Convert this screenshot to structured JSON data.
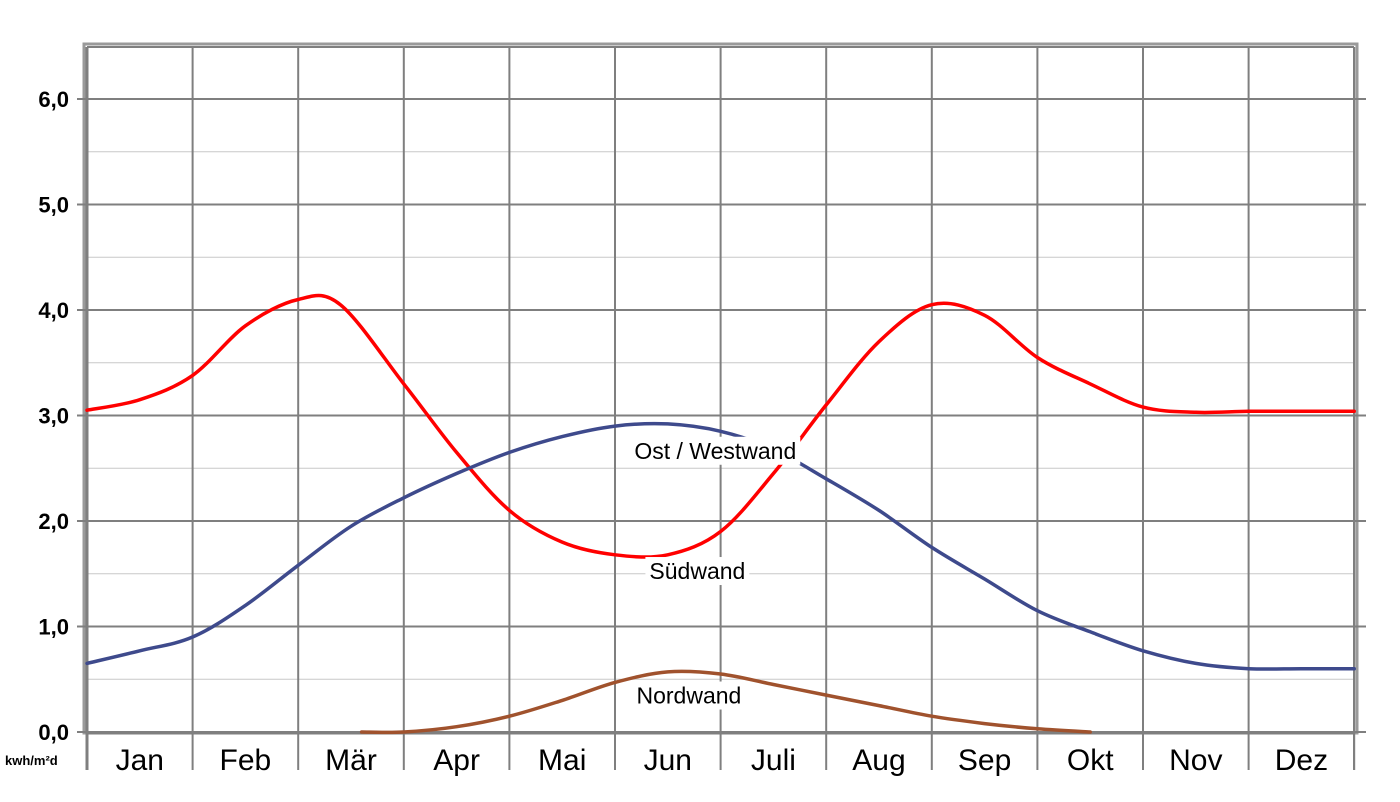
{
  "chart_data": {
    "type": "line",
    "title": "",
    "xlabel": "",
    "ylabel": "",
    "y_unit_label": "kwh/m²d",
    "categories": [
      "Jan",
      "Feb",
      "Mär",
      "Apr",
      "Mai",
      "Jun",
      "Juli",
      "Aug",
      "Sep",
      "Okt",
      "Nov",
      "Dez"
    ],
    "x_range": [
      1,
      13
    ],
    "ylim": [
      0,
      6.5
    ],
    "yticks": [
      0,
      1,
      2,
      3,
      4,
      5,
      6
    ],
    "ytick_labels": [
      "0,0",
      "1,0",
      "2,0",
      "3,0",
      "4,0",
      "5,0",
      "6,0"
    ],
    "grid": true,
    "series": [
      {
        "name": "Südwand",
        "color": "#ff0000",
        "x": [
          1.0,
          1.5,
          2.0,
          2.5,
          3.0,
          3.4,
          4.0,
          4.5,
          5.0,
          5.5,
          6.0,
          6.5,
          7.0,
          7.5,
          8.0,
          8.5,
          9.0,
          9.5,
          10.0,
          10.5,
          11.0,
          11.5,
          12.0,
          12.5,
          13.0
        ],
        "values": [
          3.05,
          3.15,
          3.38,
          3.85,
          4.1,
          4.05,
          3.3,
          2.65,
          2.1,
          1.8,
          1.68,
          1.68,
          1.9,
          2.45,
          3.1,
          3.7,
          4.05,
          3.95,
          3.55,
          3.3,
          3.08,
          3.03,
          3.04,
          3.04,
          3.04
        ]
      },
      {
        "name": "Ost / Westwand",
        "color": "#3e4a8c",
        "x": [
          1.0,
          1.5,
          2.0,
          2.5,
          3.0,
          3.5,
          4.0,
          4.5,
          5.0,
          5.5,
          6.0,
          6.5,
          7.0,
          7.5,
          8.0,
          8.5,
          9.0,
          9.5,
          10.0,
          10.5,
          11.0,
          11.5,
          12.0,
          12.5,
          13.0
        ],
        "values": [
          0.65,
          0.77,
          0.9,
          1.2,
          1.58,
          1.95,
          2.22,
          2.45,
          2.65,
          2.8,
          2.9,
          2.92,
          2.85,
          2.68,
          2.4,
          2.1,
          1.75,
          1.45,
          1.15,
          0.95,
          0.77,
          0.65,
          0.6,
          0.6,
          0.6
        ]
      },
      {
        "name": "Nordwand",
        "color": "#a0522d",
        "x": [
          3.6,
          4.0,
          4.5,
          5.0,
          5.5,
          6.0,
          6.5,
          7.0,
          7.5,
          8.0,
          8.5,
          9.0,
          9.5,
          10.0,
          10.5
        ],
        "values": [
          0.0,
          0.0,
          0.05,
          0.15,
          0.3,
          0.47,
          0.57,
          0.55,
          0.45,
          0.35,
          0.25,
          0.15,
          0.08,
          0.03,
          0.0
        ]
      }
    ],
    "annotations": [
      {
        "text": "Ost / Westwand",
        "x": 6.95,
        "y": 2.59
      },
      {
        "text": "Südwand",
        "x": 6.78,
        "y": 1.45
      },
      {
        "text": "Nordwand",
        "x": 6.7,
        "y": 0.27
      }
    ]
  }
}
